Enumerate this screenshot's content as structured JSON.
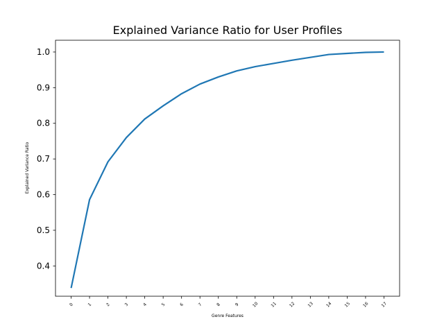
{
  "chart_data": {
    "type": "line",
    "title": "Explained Variance Ratio for User Profiles",
    "xlabel": "Genre Features",
    "ylabel": "Explained Variance Ratio",
    "categories": [
      "0",
      "1",
      "2",
      "3",
      "4",
      "5",
      "6",
      "7",
      "8",
      "9",
      "10",
      "11",
      "12",
      "13",
      "14",
      "15",
      "16",
      "17"
    ],
    "series": [
      {
        "values": [
          0.338,
          0.586,
          0.692,
          0.76,
          0.812,
          0.849,
          0.883,
          0.91,
          0.93,
          0.947,
          0.959,
          0.968,
          0.977,
          0.985,
          0.993,
          0.996,
          0.999,
          1.0
        ],
        "color": "#1f77b4"
      }
    ],
    "yticks": [
      "0.4",
      "0.5",
      "0.6",
      "0.7",
      "0.8",
      "0.9",
      "1.0"
    ],
    "ylim": [
      0.315,
      1.033
    ],
    "xlim": [
      -0.85,
      17.85
    ],
    "grid": false
  }
}
